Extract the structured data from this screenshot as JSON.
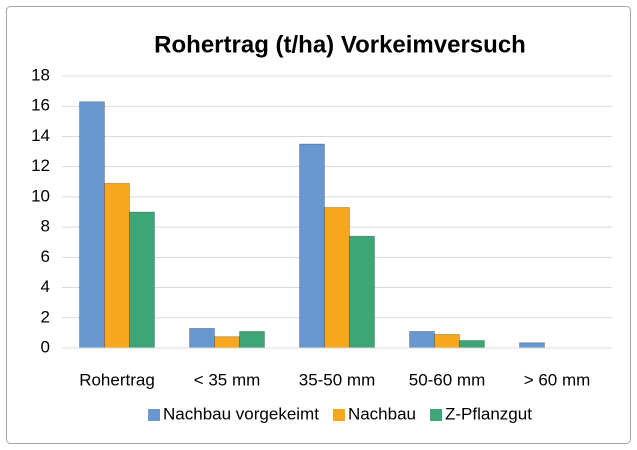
{
  "chart_data": {
    "type": "bar",
    "title": "Rohertrag (t/ha) Vorkeimversuch",
    "categories": [
      "Rohertrag",
      "< 35 mm",
      "35-50 mm",
      "50-60 mm",
      "> 60 mm"
    ],
    "series": [
      {
        "name": "Nachbau vorgekeimt",
        "color": "#6897d0",
        "values": [
          16.3,
          1.3,
          13.5,
          1.1,
          0.35
        ]
      },
      {
        "name": "Nachbau",
        "color": "#f6a71d",
        "values": [
          10.9,
          0.75,
          9.3,
          0.9,
          0
        ]
      },
      {
        "name": "Z-Pflanzgut",
        "color": "#3ea676",
        "values": [
          9.0,
          1.1,
          7.4,
          0.5,
          0
        ]
      }
    ],
    "ylim": [
      0,
      18
    ],
    "yticks": [
      0,
      2,
      4,
      6,
      8,
      10,
      12,
      14,
      16,
      18
    ],
    "grid": true,
    "legend": "bottom"
  }
}
